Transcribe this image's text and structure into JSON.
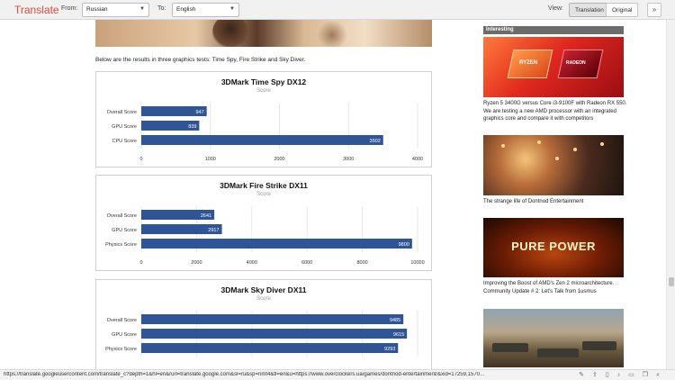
{
  "toolbar": {
    "brand": "Translate",
    "from_label": "From:",
    "from_value": "Russian",
    "to_label": "To:",
    "to_value": "English",
    "view_label": "View:",
    "translation_btn": "Translation",
    "original_btn": "Original",
    "expand_icon": "double-chevron-down-icon"
  },
  "article": {
    "intro": "Below are the results in three graphics tests: Time Spy, Fire Strike and Sky Diver."
  },
  "chart_data": [
    {
      "type": "bar",
      "orientation": "horizontal",
      "title": "3DMark Time Spy DX12",
      "subtitle": "Score",
      "categories": [
        "Overall Score",
        "GPU Score",
        "CPU Score"
      ],
      "values": [
        947,
        839,
        3502
      ],
      "xlim": [
        0,
        4000
      ],
      "ticks": [
        0,
        1000,
        2000,
        3000,
        4000
      ],
      "bar_color": "#2f5597",
      "grid": true
    },
    {
      "type": "bar",
      "orientation": "horizontal",
      "title": "3DMark Fire Strike DX11",
      "subtitle": "Score",
      "categories": [
        "Overall Score",
        "GPU Score",
        "Physics Score"
      ],
      "values": [
        2641,
        2917,
        9800
      ],
      "xlim": [
        0,
        10000
      ],
      "ticks": [
        0,
        2000,
        4000,
        6000,
        8000,
        10000
      ],
      "bar_color": "#2f5597",
      "grid": true
    },
    {
      "type": "bar",
      "orientation": "horizontal",
      "title": "3DMark Sky Diver DX11",
      "subtitle": "Score",
      "categories": [
        "Overall Score",
        "GPU Score",
        "Physics Score"
      ],
      "values": [
        9485,
        9615,
        9293
      ],
      "xlim": [
        0,
        10000
      ],
      "ticks": [],
      "bar_color": "#2f5597",
      "grid": true
    }
  ],
  "sidebar": {
    "heading": "Interesting",
    "items": [
      {
        "caption": "Ryzen 5 3400G versus Core i3-9100F with Radeon RX 550. We are testing a new AMD processor with an integrated graphics core and compare it with competitors",
        "image_text_1": "RYZEN",
        "image_text_2": "RADEON"
      },
      {
        "caption": "The strange life of Dontnod Entertainment"
      },
      {
        "caption": "Improving the Boost of AMD's Zen 2 microarchitecture. Community Update # 2: Let's Talk from 1usmus",
        "image_text": "PURE POWER"
      },
      {
        "caption": ""
      }
    ]
  },
  "status": {
    "url": "https://translate.googleusercontent.com/translate_c?depth=1&hl=en&rurl=translate.google.com&sl=ru&sp=nmt4&tl=en&u=https://www.overclockers.ua/games/dontnod-entertainment/&xid=17259,1570..."
  },
  "colors": {
    "brand": "#dd4b39",
    "bar": "#2f5597",
    "sidebar_head": "#6b6b6b"
  }
}
